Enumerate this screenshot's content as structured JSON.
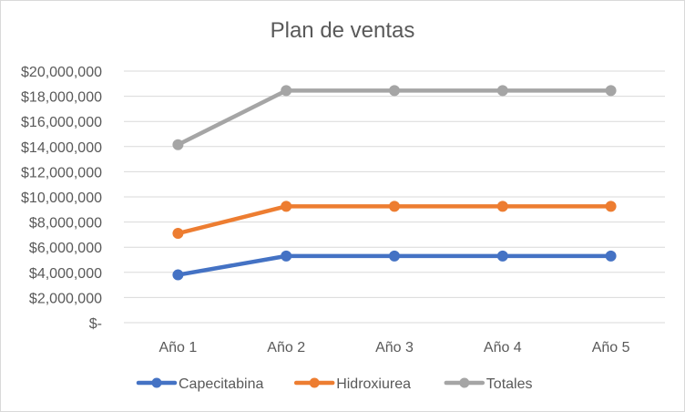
{
  "chart_data": {
    "type": "line",
    "title": "Plan de ventas",
    "xlabel": "",
    "ylabel": "",
    "categories": [
      "Año 1",
      "Año 2",
      "Año 3",
      "Año 4",
      "Año 5"
    ],
    "y_ticks": [
      "$-",
      "$2,000,000",
      "$4,000,000",
      "$6,000,000",
      "$8,000,000",
      "$10,000,000",
      "$12,000,000",
      "$14,000,000",
      "$16,000,000",
      "$18,000,000",
      "$20,000,000"
    ],
    "ylim": [
      0,
      20000000
    ],
    "grid": true,
    "legend_position": "bottom",
    "series": [
      {
        "name": "Capecitabina",
        "color": "#4472c4",
        "values": [
          3800000,
          5300000,
          5300000,
          5300000,
          5300000
        ]
      },
      {
        "name": "Hidroxiurea",
        "color": "#ed7d31",
        "values": [
          7100000,
          9250000,
          9250000,
          9250000,
          9250000
        ]
      },
      {
        "name": "Totales",
        "color": "#a5a5a5",
        "values": [
          14150000,
          18450000,
          18450000,
          18450000,
          18450000
        ]
      }
    ]
  }
}
